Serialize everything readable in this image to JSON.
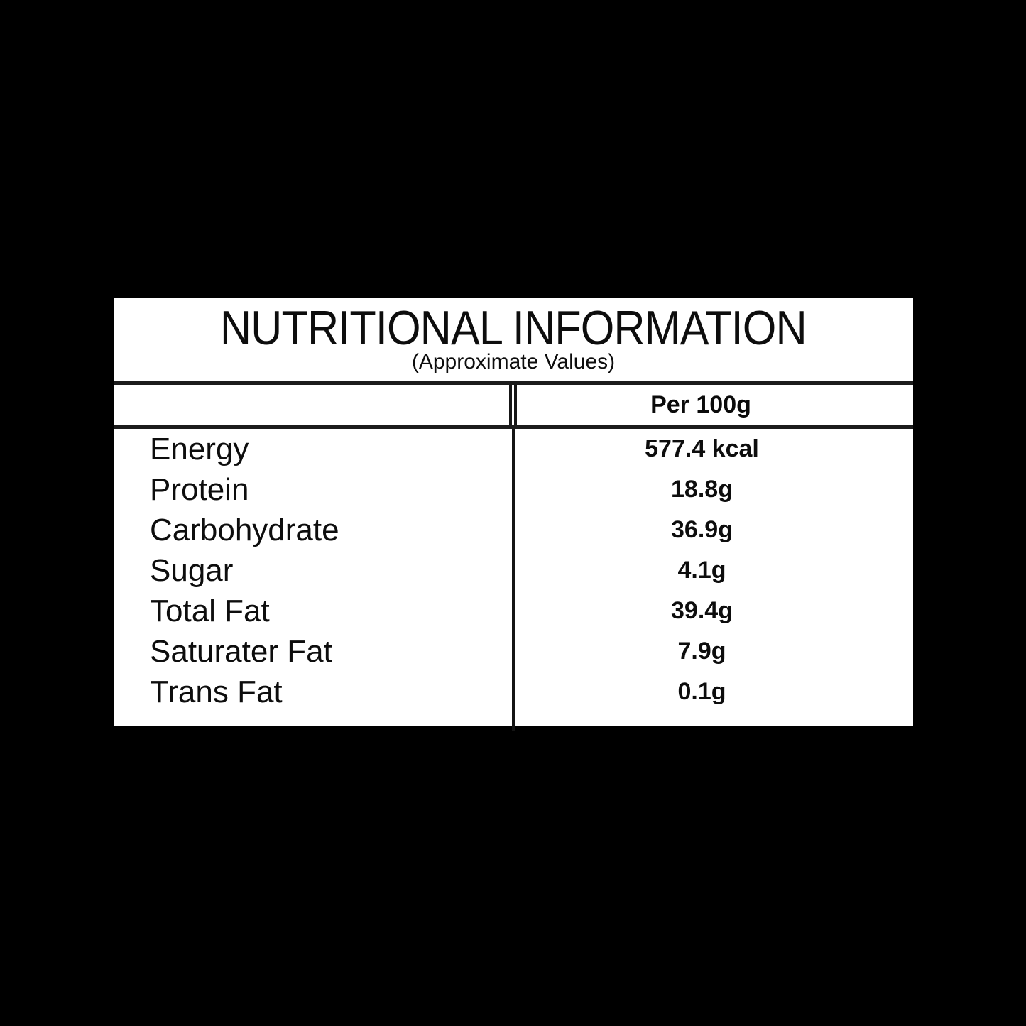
{
  "colors": {
    "background": "#000000",
    "panel": "#ffffff",
    "text": "#0d0d0d",
    "line": "#1c1c1c"
  },
  "panel": {
    "title": "NUTRITIONAL INFORMATION",
    "subtitle": "(Approximate Values)",
    "table": {
      "value_column_header": "Per 100g",
      "rows": [
        {
          "label": "Energy",
          "value": "577.4 kcal"
        },
        {
          "label": "Protein",
          "value": "18.8g"
        },
        {
          "label": "Carbohydrate",
          "value": "36.9g"
        },
        {
          "label": "Sugar",
          "value": "4.1g"
        },
        {
          "label": "Total Fat",
          "value": "39.4g"
        },
        {
          "label": "Saturater Fat",
          "value": "7.9g"
        },
        {
          "label": "Trans Fat",
          "value": "0.1g"
        }
      ]
    }
  }
}
